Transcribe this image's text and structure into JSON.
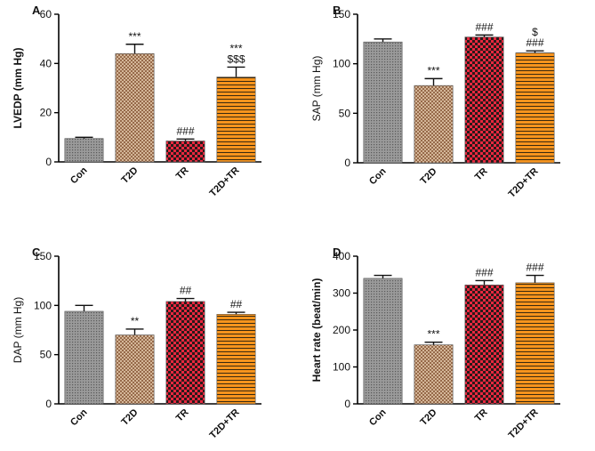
{
  "chart_data": [
    {
      "type": "bar",
      "panel_label": "A",
      "ylabel": "LVEDP (mm Hg)",
      "categories": [
        "Con",
        "T2D",
        "TR",
        "T2D+TR"
      ],
      "values": [
        9.5,
        44,
        8.5,
        34.5
      ],
      "errors": [
        0.5,
        3.8,
        0.8,
        4
      ],
      "annotations": [
        [],
        [
          "***"
        ],
        [
          "###"
        ],
        [
          "***",
          "$$$"
        ]
      ],
      "ylim": [
        0,
        60
      ],
      "yticks": [
        "0",
        "20",
        "40",
        "60"
      ],
      "ylabel_bold": true
    },
    {
      "type": "bar",
      "panel_label": "B",
      "ylabel": "SAP (mm Hg)",
      "categories": [
        "Con",
        "T2D",
        "TR",
        "T2D+TR"
      ],
      "values": [
        122,
        78,
        127,
        111
      ],
      "errors": [
        3,
        7,
        2,
        2
      ],
      "annotations": [
        [],
        [
          "***"
        ],
        [
          "###"
        ],
        [
          "$",
          "###"
        ]
      ],
      "ylim": [
        0,
        150
      ],
      "yticks": [
        "0",
        "50",
        "100",
        "150"
      ],
      "ylabel_bold": false
    },
    {
      "type": "bar",
      "panel_label": "C",
      "ylabel": "DAP (mm Hg)",
      "categories": [
        "Con",
        "T2D",
        "TR",
        "T2D+TR"
      ],
      "values": [
        94,
        70,
        104,
        91
      ],
      "errors": [
        6,
        6,
        3,
        2
      ],
      "annotations": [
        [],
        [
          "**"
        ],
        [
          "##"
        ],
        [
          "##"
        ]
      ],
      "ylim": [
        0,
        150
      ],
      "yticks": [
        "0",
        "50",
        "100",
        "150"
      ],
      "ylabel_bold": false
    },
    {
      "type": "bar",
      "panel_label": "D",
      "ylabel": "Heart rate (beat/min)",
      "categories": [
        "Con",
        "T2D",
        "TR",
        "T2D+TR"
      ],
      "values": [
        340,
        160,
        322,
        328
      ],
      "errors": [
        8,
        7,
        12,
        20
      ],
      "annotations": [
        [],
        [
          "***"
        ],
        [
          "###"
        ],
        [
          "###"
        ]
      ],
      "ylim": [
        0,
        400
      ],
      "yticks": [
        "0",
        "100",
        "200",
        "300",
        "400"
      ],
      "ylabel_bold": true
    }
  ],
  "colors": {
    "Con": "#8c8c8c",
    "T2D": "#c4a484",
    "TR": "#d6243a",
    "T2D+TR": "#f7941d"
  }
}
